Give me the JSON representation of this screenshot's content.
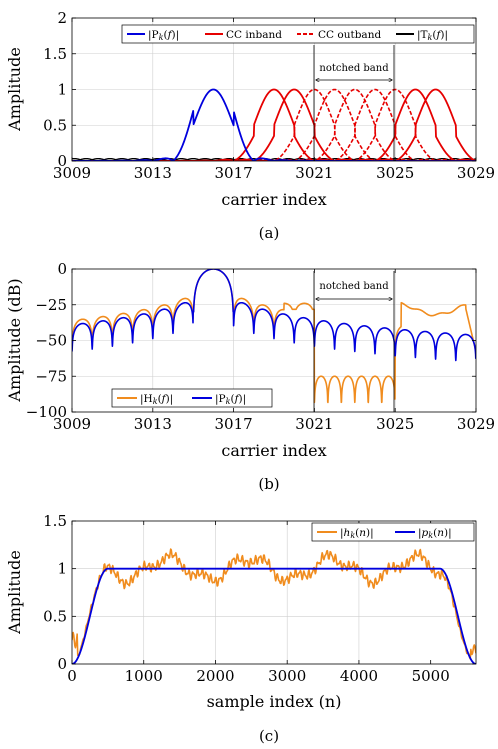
{
  "colors": {
    "blue": "#0000dd",
    "red": "#e60000",
    "black": "#000000",
    "orange": "#f08c1e",
    "grid": "#cfcfcf"
  },
  "chart_data": [
    {
      "type": "line",
      "caption": "(a)",
      "xlabel": "carrier index",
      "ylabel": "Amplitude",
      "xlim": [
        3009,
        3029
      ],
      "ylim": [
        0,
        2
      ],
      "xticks": [
        "3009",
        "3013",
        "3017",
        "3021",
        "3025",
        "3029"
      ],
      "yticks": [
        "0",
        "0.5",
        "1",
        "1.5",
        "2"
      ],
      "grid": true,
      "legend": "top-right",
      "annotation": {
        "text": "notched band",
        "x_range": [
          3021,
          3025
        ]
      },
      "series": [
        {
          "name": "|Pk(f)|",
          "legend_label": "|P_k(f)|",
          "color": "blue",
          "style": "solid",
          "centers": [
            3016
          ]
        },
        {
          "name": "CC inband",
          "color": "red",
          "style": "solid",
          "centers": [
            3019,
            3020,
            3026,
            3027
          ]
        },
        {
          "name": "CC outband",
          "color": "red",
          "style": "dashed",
          "centers": [
            3021,
            3022,
            3023,
            3024,
            3025
          ]
        },
        {
          "name": "|Tk(f)|",
          "legend_label": "|T_k(f)|",
          "color": "black",
          "style": "solid"
        }
      ]
    },
    {
      "type": "line",
      "caption": "(b)",
      "xlabel": "carrier index",
      "ylabel": "Amplitude (dB)",
      "xlim": [
        3009,
        3029
      ],
      "ylim": [
        -100,
        0
      ],
      "xticks": [
        "3009",
        "3013",
        "3017",
        "3021",
        "3025",
        "3029"
      ],
      "yticks": [
        "0",
        "−25",
        "−50",
        "−75",
        "−100"
      ],
      "grid": true,
      "legend": "bottom-left",
      "annotation": {
        "text": "notched band",
        "x_range": [
          3021,
          3025
        ]
      },
      "series": [
        {
          "name": "|Hk(f)|",
          "legend_label": "|H_k(f)|",
          "color": "orange",
          "peak": 3016
        },
        {
          "name": "|Pk(f)|",
          "legend_label": "|P_k(f)|",
          "color": "blue",
          "peak": 3016
        }
      ]
    },
    {
      "type": "line",
      "caption": "(c)",
      "xlabel": "sample index (n)",
      "ylabel": "Amplitude",
      "xlim": [
        0,
        5632
      ],
      "ylim": [
        0,
        1.5
      ],
      "xticks": [
        "0",
        "1000",
        "2000",
        "3000",
        "4000",
        "5000"
      ],
      "yticks": [
        "0",
        "0.5",
        "1",
        "1.5"
      ],
      "grid": true,
      "legend": "top-right",
      "series": [
        {
          "name": "|hk(n)|",
          "legend_label": "|h_k(n)|",
          "color": "orange",
          "plateau": 1.0,
          "ripple": 0.15
        },
        {
          "name": "|pk(n)|",
          "legend_label": "|p_k(n)|",
          "color": "blue",
          "plateau": 1.0,
          "ramp_end": 500,
          "ramp_start": 5130
        }
      ]
    }
  ]
}
